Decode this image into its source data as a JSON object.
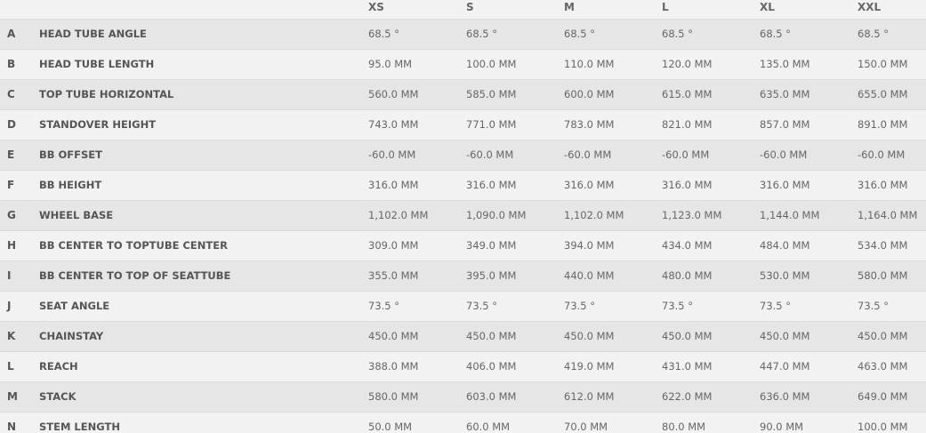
{
  "sizes": [
    "XS",
    "S",
    "M",
    "L",
    "XL",
    "XXL"
  ],
  "rows": [
    {
      "letter": "A",
      "name": "HEAD TUBE ANGLE",
      "values": [
        "68.5 °",
        "68.5 °",
        "68.5 °",
        "68.5 °",
        "68.5 °",
        "68.5 °"
      ]
    },
    {
      "letter": "B",
      "name": "HEAD TUBE LENGTH",
      "values": [
        "95.0 MM",
        "100.0 MM",
        "110.0 MM",
        "120.0 MM",
        "135.0 MM",
        "150.0 MM"
      ]
    },
    {
      "letter": "C",
      "name": "TOP TUBE HORIZONTAL",
      "values": [
        "560.0 MM",
        "585.0 MM",
        "600.0 MM",
        "615.0 MM",
        "635.0 MM",
        "655.0 MM"
      ]
    },
    {
      "letter": "D",
      "name": "STANDOVER HEIGHT",
      "values": [
        "743.0 MM",
        "771.0 MM",
        "783.0 MM",
        "821.0 MM",
        "857.0 MM",
        "891.0 MM"
      ]
    },
    {
      "letter": "E",
      "name": "BB OFFSET",
      "values": [
        "-60.0 MM",
        "-60.0 MM",
        "-60.0 MM",
        "-60.0 MM",
        "-60.0 MM",
        "-60.0 MM"
      ]
    },
    {
      "letter": "F",
      "name": "BB HEIGHT",
      "values": [
        "316.0 MM",
        "316.0 MM",
        "316.0 MM",
        "316.0 MM",
        "316.0 MM",
        "316.0 MM"
      ]
    },
    {
      "letter": "G",
      "name": "WHEEL BASE",
      "values": [
        "1,102.0 MM",
        "1,090.0 MM",
        "1,102.0 MM",
        "1,123.0 MM",
        "1,144.0 MM",
        "1,164.0 MM"
      ]
    },
    {
      "letter": "H",
      "name": "BB CENTER TO TOPTUBE CENTER",
      "values": [
        "309.0 MM",
        "349.0 MM",
        "394.0 MM",
        "434.0 MM",
        "484.0 MM",
        "534.0 MM"
      ]
    },
    {
      "letter": "I",
      "name": "BB CENTER TO TOP OF SEATTUBE",
      "values": [
        "355.0 MM",
        "395.0 MM",
        "440.0 MM",
        "480.0 MM",
        "530.0 MM",
        "580.0 MM"
      ]
    },
    {
      "letter": "J",
      "name": "SEAT ANGLE",
      "values": [
        "73.5 °",
        "73.5 °",
        "73.5 °",
        "73.5 °",
        "73.5 °",
        "73.5 °"
      ]
    },
    {
      "letter": "K",
      "name": "CHAINSTAY",
      "values": [
        "450.0 MM",
        "450.0 MM",
        "450.0 MM",
        "450.0 MM",
        "450.0 MM",
        "450.0 MM"
      ]
    },
    {
      "letter": "L",
      "name": "REACH",
      "values": [
        "388.0 MM",
        "406.0 MM",
        "419.0 MM",
        "431.0 MM",
        "447.0 MM",
        "463.0 MM"
      ]
    },
    {
      "letter": "M",
      "name": "STACK",
      "values": [
        "580.0 MM",
        "603.0 MM",
        "612.0 MM",
        "622.0 MM",
        "636.0 MM",
        "649.0 MM"
      ]
    },
    {
      "letter": "N",
      "name": "STEM LENGTH",
      "values": [
        "50.0 MM",
        "60.0 MM",
        "70.0 MM",
        "80.0 MM",
        "90.0 MM",
        "100.0 MM"
      ]
    }
  ]
}
